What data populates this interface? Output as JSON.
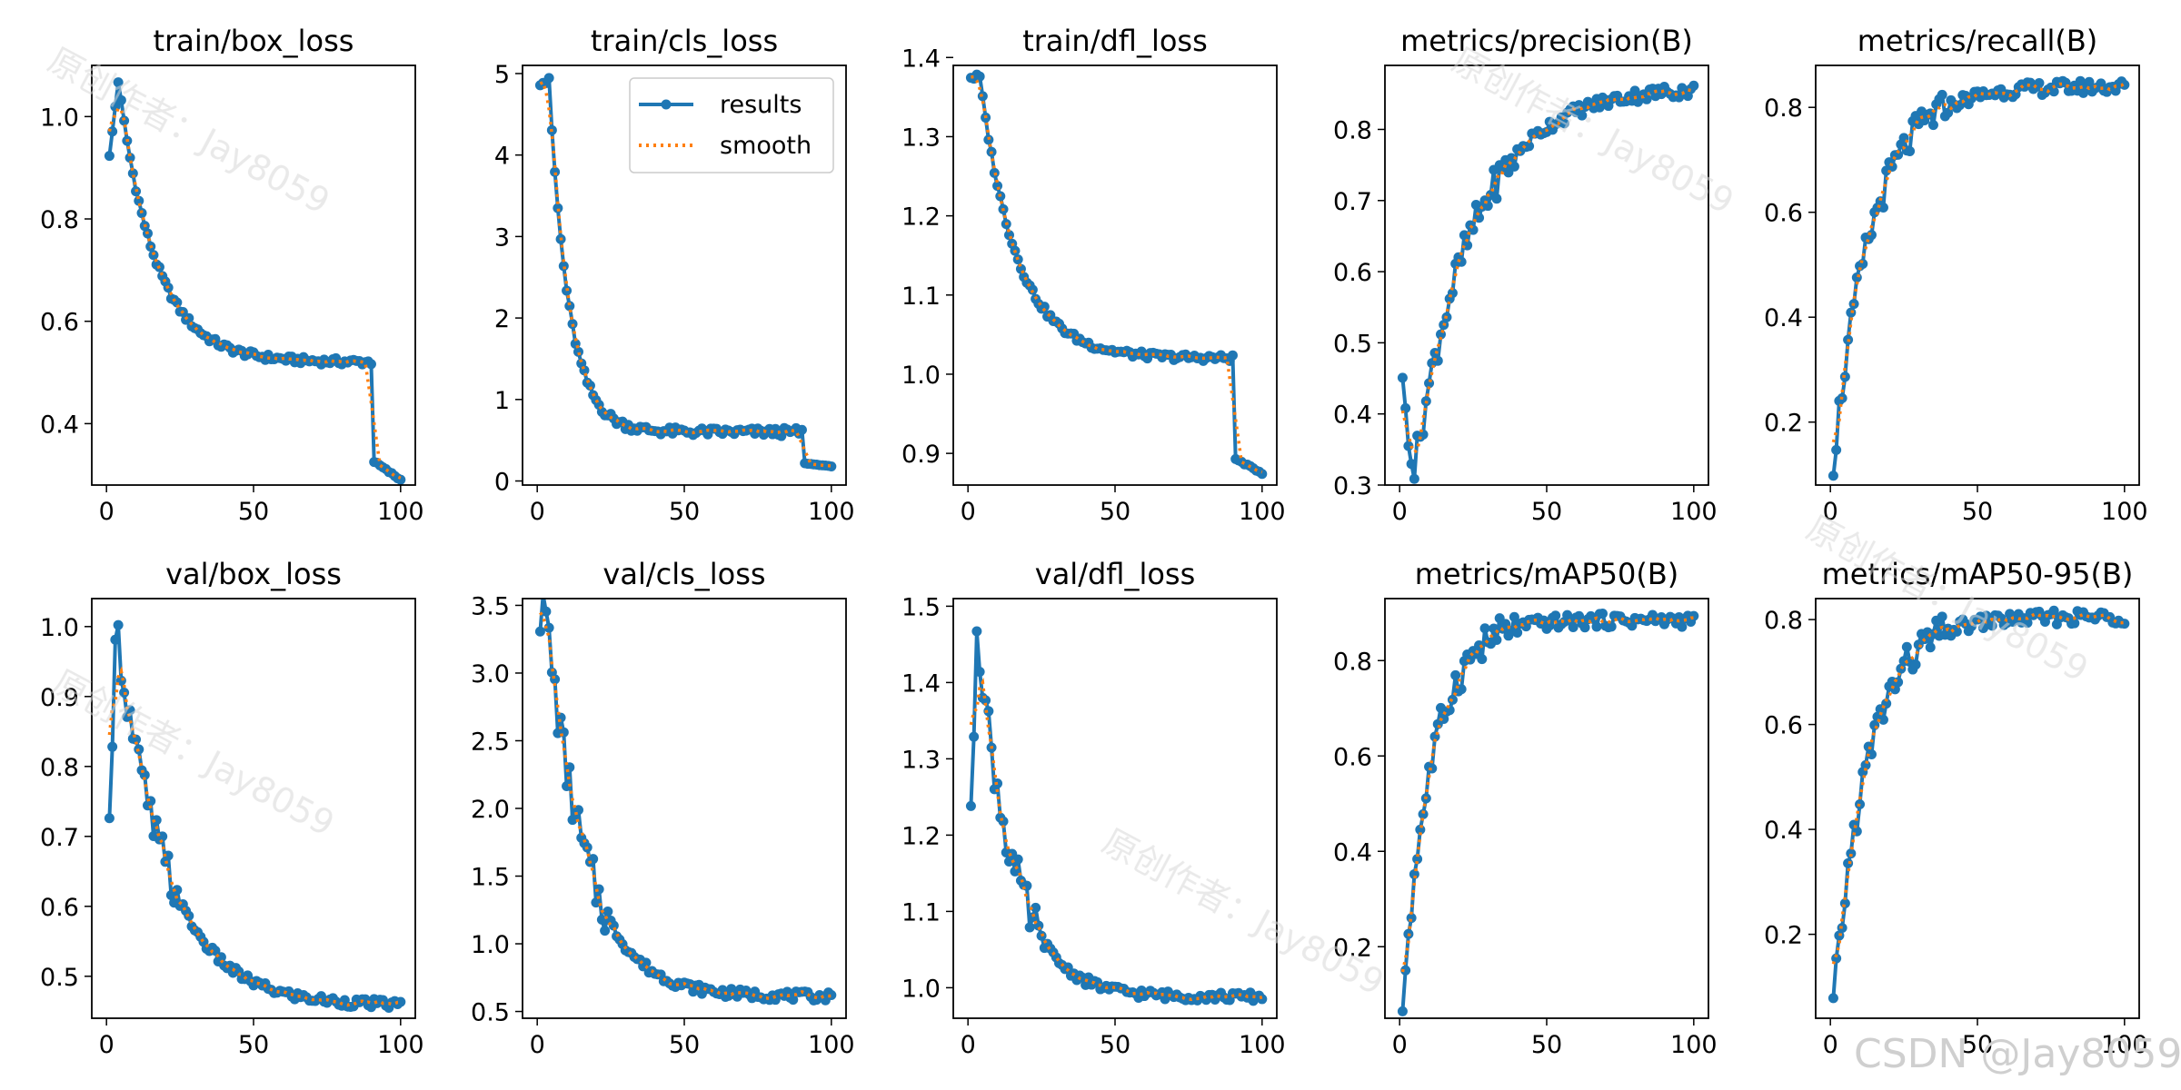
{
  "figure": {
    "background": "#ffffff",
    "results_color": "#1f77b4",
    "smooth_color": "#ff7f0e"
  },
  "legend": {
    "results_label": "results",
    "smooth_label": "smooth",
    "placement": "upper right of train/cls_loss"
  },
  "watermark": {
    "text": "原创作者：Jay8059",
    "csdn": "CSDN @Jay8059"
  },
  "chart_data": [
    {
      "type": "line",
      "title": "train/box_loss",
      "xlim": [
        -5,
        105
      ],
      "ylim": [
        0.28,
        1.1
      ],
      "xticks": [
        0,
        50,
        100
      ],
      "yticks": [
        0.4,
        0.6,
        0.8,
        1.0
      ],
      "profile": "trainloss",
      "params": [
        0.92,
        1.07,
        0.52,
        0.33,
        0.29,
        0.08
      ]
    },
    {
      "type": "line",
      "title": "train/cls_loss",
      "xlim": [
        -5,
        105
      ],
      "ylim": [
        -0.05,
        5.1
      ],
      "xticks": [
        0,
        50,
        100
      ],
      "yticks": [
        0,
        1,
        2,
        3,
        4,
        5
      ],
      "profile": "trainloss",
      "params": [
        4.9,
        4.9,
        0.6,
        0.22,
        0.18,
        0.15
      ]
    },
    {
      "type": "line",
      "title": "train/dfl_loss",
      "xlim": [
        -5,
        105
      ],
      "ylim": [
        0.86,
        1.39
      ],
      "xticks": [
        0,
        50,
        100
      ],
      "yticks": [
        0.9,
        1.0,
        1.1,
        1.2,
        1.3,
        1.4
      ],
      "profile": "trainloss",
      "params": [
        1.375,
        1.375,
        1.02,
        0.895,
        0.875,
        0.08
      ]
    },
    {
      "type": "line",
      "title": "metrics/precision(B)",
      "xlim": [
        -5,
        105
      ],
      "ylim": [
        0.3,
        0.89
      ],
      "xticks": [
        0,
        50,
        100
      ],
      "yticks": [
        0.3,
        0.4,
        0.5,
        0.6,
        0.7,
        0.8
      ],
      "profile": "rising",
      "params": [
        0.435,
        0.32,
        0.86,
        0.05
      ]
    },
    {
      "type": "line",
      "title": "metrics/recall(B)",
      "xlim": [
        -5,
        105
      ],
      "ylim": [
        0.08,
        0.88
      ],
      "xticks": [
        0,
        50,
        100
      ],
      "yticks": [
        0.2,
        0.4,
        0.6,
        0.8
      ],
      "profile": "rising",
      "params": [
        0.12,
        0.12,
        0.84,
        0.075
      ]
    },
    {
      "type": "line",
      "title": "val/box_loss",
      "xlim": [
        -5,
        105
      ],
      "ylim": [
        0.44,
        1.04
      ],
      "xticks": [
        0,
        50,
        100
      ],
      "yticks": [
        0.5,
        0.6,
        0.7,
        0.8,
        0.9,
        1.0
      ],
      "profile": "valloss",
      "params": [
        0.705,
        1.013,
        0.458,
        0.06
      ]
    },
    {
      "type": "line",
      "title": "val/cls_loss",
      "xlim": [
        -5,
        105
      ],
      "ylim": [
        0.45,
        3.55
      ],
      "xticks": [
        0,
        50,
        100
      ],
      "yticks": [
        0.5,
        1.0,
        1.5,
        2.0,
        2.5,
        3.0,
        3.5
      ],
      "profile": "valloss",
      "params": [
        3.44,
        3.44,
        0.61,
        0.075
      ]
    },
    {
      "type": "line",
      "title": "val/dfl_loss",
      "xlim": [
        -5,
        105
      ],
      "ylim": [
        0.96,
        1.51
      ],
      "xticks": [
        0,
        50,
        100
      ],
      "yticks": [
        1.0,
        1.1,
        1.2,
        1.3,
        1.4,
        1.5
      ],
      "profile": "valloss",
      "params": [
        1.21,
        1.483,
        0.988,
        0.085
      ]
    },
    {
      "type": "line",
      "title": "metrics/mAP50(B)",
      "xlim": [
        -5,
        105
      ],
      "ylim": [
        0.05,
        0.93
      ],
      "xticks": [
        0,
        50,
        100
      ],
      "yticks": [
        0.2,
        0.4,
        0.6,
        0.8
      ],
      "profile": "rising",
      "params": [
        0.08,
        0.08,
        0.885,
        0.1
      ]
    },
    {
      "type": "line",
      "title": "metrics/mAP50-95(B)",
      "xlim": [
        -5,
        105
      ],
      "ylim": [
        0.04,
        0.84
      ],
      "xticks": [
        0,
        50,
        100
      ],
      "yticks": [
        0.2,
        0.4,
        0.6,
        0.8
      ],
      "profile": "rising",
      "params": [
        0.06,
        0.06,
        0.805,
        0.085
      ]
    }
  ]
}
